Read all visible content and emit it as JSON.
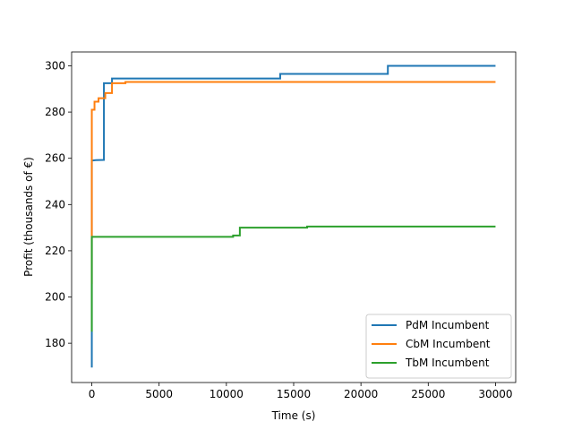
{
  "chart_data": {
    "type": "line",
    "title": "",
    "xlabel": "Time (s)",
    "ylabel": "Profit (thousands of €)",
    "xlim": [
      -1500,
      31500
    ],
    "ylim": [
      163,
      306
    ],
    "xticks": [
      0,
      5000,
      10000,
      15000,
      20000,
      25000,
      30000
    ],
    "yticks": [
      180,
      200,
      220,
      240,
      260,
      280,
      300
    ],
    "grid": false,
    "legend_position": "lower-right",
    "series": [
      {
        "name": "PdM Incumbent",
        "color": "#1f77b4",
        "points": [
          [
            0,
            169.5
          ],
          [
            0,
            214.3
          ],
          [
            0,
            251.8
          ],
          [
            0,
            255.2
          ],
          [
            0,
            258.6
          ],
          [
            0,
            259.0
          ],
          [
            300,
            259.2
          ],
          [
            900,
            259.3
          ],
          [
            900,
            292.5
          ],
          [
            1500,
            292.5
          ],
          [
            1500,
            294.5
          ],
          [
            14000,
            294.5
          ],
          [
            14000,
            296.5
          ],
          [
            22000,
            296.5
          ],
          [
            22000,
            300.0
          ],
          [
            30000,
            300.0
          ]
        ]
      },
      {
        "name": "CbM Incumbent",
        "color": "#ff7f0e",
        "points": [
          [
            0,
            205.7
          ],
          [
            0,
            241.3
          ],
          [
            0,
            281.0
          ],
          [
            200,
            281.0
          ],
          [
            200,
            284.5
          ],
          [
            500,
            284.5
          ],
          [
            500,
            286.0
          ],
          [
            1000,
            286.0
          ],
          [
            1000,
            288.2
          ],
          [
            1500,
            288.2
          ],
          [
            1500,
            292.5
          ],
          [
            2500,
            292.5
          ],
          [
            2500,
            293.0
          ],
          [
            30000,
            293.0
          ]
        ]
      },
      {
        "name": "TbM Incumbent",
        "color": "#2ca02c",
        "points": [
          [
            0,
            185.0
          ],
          [
            0,
            185.6
          ],
          [
            0,
            190.8
          ],
          [
            0,
            192.4
          ],
          [
            0,
            194.2
          ],
          [
            0,
            200.7
          ],
          [
            0,
            225.0
          ],
          [
            0,
            226.0
          ],
          [
            10500,
            226.0
          ],
          [
            10500,
            226.6
          ],
          [
            11000,
            226.6
          ],
          [
            11000,
            230.0
          ],
          [
            16000,
            230.0
          ],
          [
            16000,
            230.5
          ],
          [
            30000,
            230.5
          ]
        ]
      }
    ]
  }
}
